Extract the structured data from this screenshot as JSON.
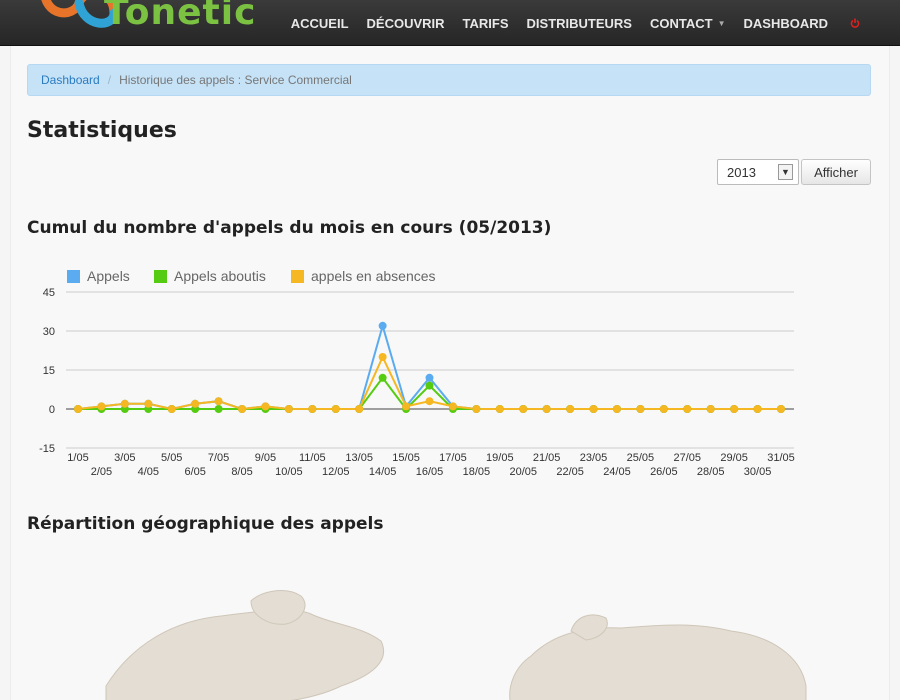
{
  "nav": {
    "logo_text": "Tonetic",
    "items": [
      {
        "label": "ACCUEIL"
      },
      {
        "label": "DÉCOUVRIR"
      },
      {
        "label": "TARIFS"
      },
      {
        "label": "DISTRIBUTEURS"
      },
      {
        "label": "CONTACT"
      },
      {
        "label": "DASHBOARD"
      }
    ],
    "power_icon": "power-icon"
  },
  "breadcrumb": {
    "link": "Dashboard",
    "separator": "/",
    "current": "Historique des appels : Service Commercial"
  },
  "page_title": "Statistiques",
  "year_select": {
    "value": "2013"
  },
  "afficher_label": "Afficher",
  "chart_title": "Cumul du nombre d'appels du mois en cours (05/2013)",
  "map_title": "Répartition géographique des appels",
  "colors": {
    "appels": "#5aabef",
    "aboutis": "#55cc11",
    "absences": "#f5b722"
  },
  "chart_data": {
    "type": "line",
    "x": [
      "1/05",
      "2/05",
      "3/05",
      "4/05",
      "5/05",
      "6/05",
      "7/05",
      "8/05",
      "9/05",
      "10/05",
      "11/05",
      "12/05",
      "13/05",
      "14/05",
      "15/05",
      "16/05",
      "17/05",
      "18/05",
      "19/05",
      "20/05",
      "21/05",
      "22/05",
      "23/05",
      "24/05",
      "25/05",
      "26/05",
      "27/05",
      "28/05",
      "29/05",
      "30/05",
      "31/05"
    ],
    "ylim": [
      -15,
      45
    ],
    "yticks": [
      45,
      30,
      15,
      0,
      -15
    ],
    "legend": "top-left",
    "grid": true,
    "series": [
      {
        "name": "Appels",
        "values": [
          0,
          1,
          2,
          2,
          0,
          2,
          3,
          0,
          1,
          0,
          0,
          0,
          0,
          32,
          1,
          12,
          1,
          0,
          0,
          0,
          0,
          0,
          0,
          0,
          0,
          0,
          0,
          0,
          0,
          0,
          0
        ]
      },
      {
        "name": "Appels aboutis",
        "values": [
          0,
          0,
          0,
          0,
          0,
          0,
          0,
          0,
          0,
          0,
          0,
          0,
          0,
          12,
          0,
          9,
          0,
          0,
          0,
          0,
          0,
          0,
          0,
          0,
          0,
          0,
          0,
          0,
          0,
          0,
          0
        ]
      },
      {
        "name": "appels en absences",
        "values": [
          0,
          1,
          2,
          2,
          0,
          2,
          3,
          0,
          1,
          0,
          0,
          0,
          0,
          20,
          1,
          3,
          1,
          0,
          0,
          0,
          0,
          0,
          0,
          0,
          0,
          0,
          0,
          0,
          0,
          0,
          0
        ]
      }
    ]
  }
}
